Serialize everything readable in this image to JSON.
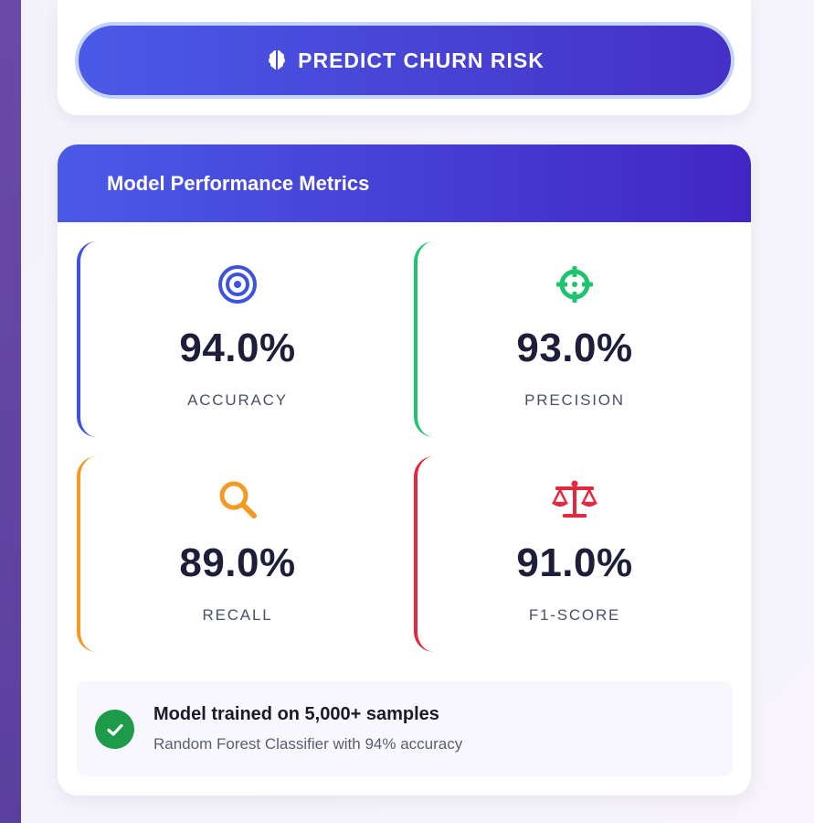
{
  "predict": {
    "label": "PREDICT CHURN RISK",
    "icon": "brain-icon"
  },
  "metrics_panel": {
    "title": "Model Performance Metrics",
    "metrics": [
      {
        "key": "accuracy",
        "value": "94.0%",
        "label": "ACCURACY",
        "icon": "target-icon",
        "color": "#3d52e0"
      },
      {
        "key": "precision",
        "value": "93.0%",
        "label": "PRECISION",
        "icon": "crosshairs-icon",
        "color": "#1ec46f"
      },
      {
        "key": "recall",
        "value": "89.0%",
        "label": "RECALL",
        "icon": "magnifier-icon",
        "color": "#f39a24"
      },
      {
        "key": "f1",
        "value": "91.0%",
        "label": "F1-SCORE",
        "icon": "balance-scale-icon",
        "color": "#e3283f"
      }
    ]
  },
  "info": {
    "title": "Model trained on 5,000+ samples",
    "subtitle": "Random Forest Classifier with 94% accuracy",
    "icon": "check-circle-icon",
    "color": "#1e9b48"
  },
  "colors": {
    "accent_start": "#4a5ae6",
    "accent_end": "#4226c4",
    "side_strip": "#6a4aa8"
  }
}
